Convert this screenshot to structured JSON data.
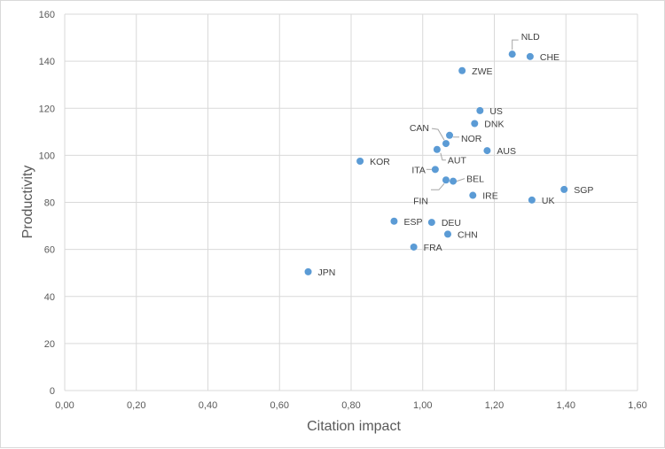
{
  "chart_data": {
    "type": "scatter",
    "title": "",
    "xlabel": "Citation impact",
    "ylabel": "Productivity",
    "xlim": [
      0,
      1.6
    ],
    "ylim": [
      0,
      160
    ],
    "x_ticks": [
      "0,00",
      "0,20",
      "0,40",
      "0,60",
      "0,80",
      "1,00",
      "1,20",
      "1,40",
      "1,60"
    ],
    "y_ticks": [
      "0",
      "20",
      "40",
      "60",
      "80",
      "100",
      "120",
      "140",
      "160"
    ],
    "grid": true,
    "legend": "none",
    "marker_color": "#5b9bd5",
    "points": [
      {
        "label": "NLD",
        "x": 1.25,
        "y": 143
      },
      {
        "label": "CHE",
        "x": 1.3,
        "y": 142
      },
      {
        "label": "ZWE",
        "x": 1.11,
        "y": 136
      },
      {
        "label": "US",
        "x": 1.16,
        "y": 119
      },
      {
        "label": "DNK",
        "x": 1.145,
        "y": 113.5
      },
      {
        "label": "NOR",
        "x": 1.075,
        "y": 108.5
      },
      {
        "label": "CAN",
        "x": 1.065,
        "y": 105
      },
      {
        "label": "AUT",
        "x": 1.04,
        "y": 102.5
      },
      {
        "label": "AUS",
        "x": 1.18,
        "y": 102
      },
      {
        "label": "KOR",
        "x": 0.825,
        "y": 97.5
      },
      {
        "label": "ITA",
        "x": 1.035,
        "y": 94
      },
      {
        "label": "BEL",
        "x": 1.085,
        "y": 89
      },
      {
        "label": "FIN",
        "x": 1.065,
        "y": 89.5
      },
      {
        "label": "IRE",
        "x": 1.14,
        "y": 83
      },
      {
        "label": "SGP",
        "x": 1.395,
        "y": 85.5
      },
      {
        "label": "UK",
        "x": 1.305,
        "y": 81
      },
      {
        "label": "ESP",
        "x": 0.92,
        "y": 72
      },
      {
        "label": "DEU",
        "x": 1.025,
        "y": 71.5
      },
      {
        "label": "CHN",
        "x": 1.07,
        "y": 66.5
      },
      {
        "label": "FRA",
        "x": 0.975,
        "y": 61
      },
      {
        "label": "JPN",
        "x": 0.68,
        "y": 50.5
      }
    ]
  }
}
